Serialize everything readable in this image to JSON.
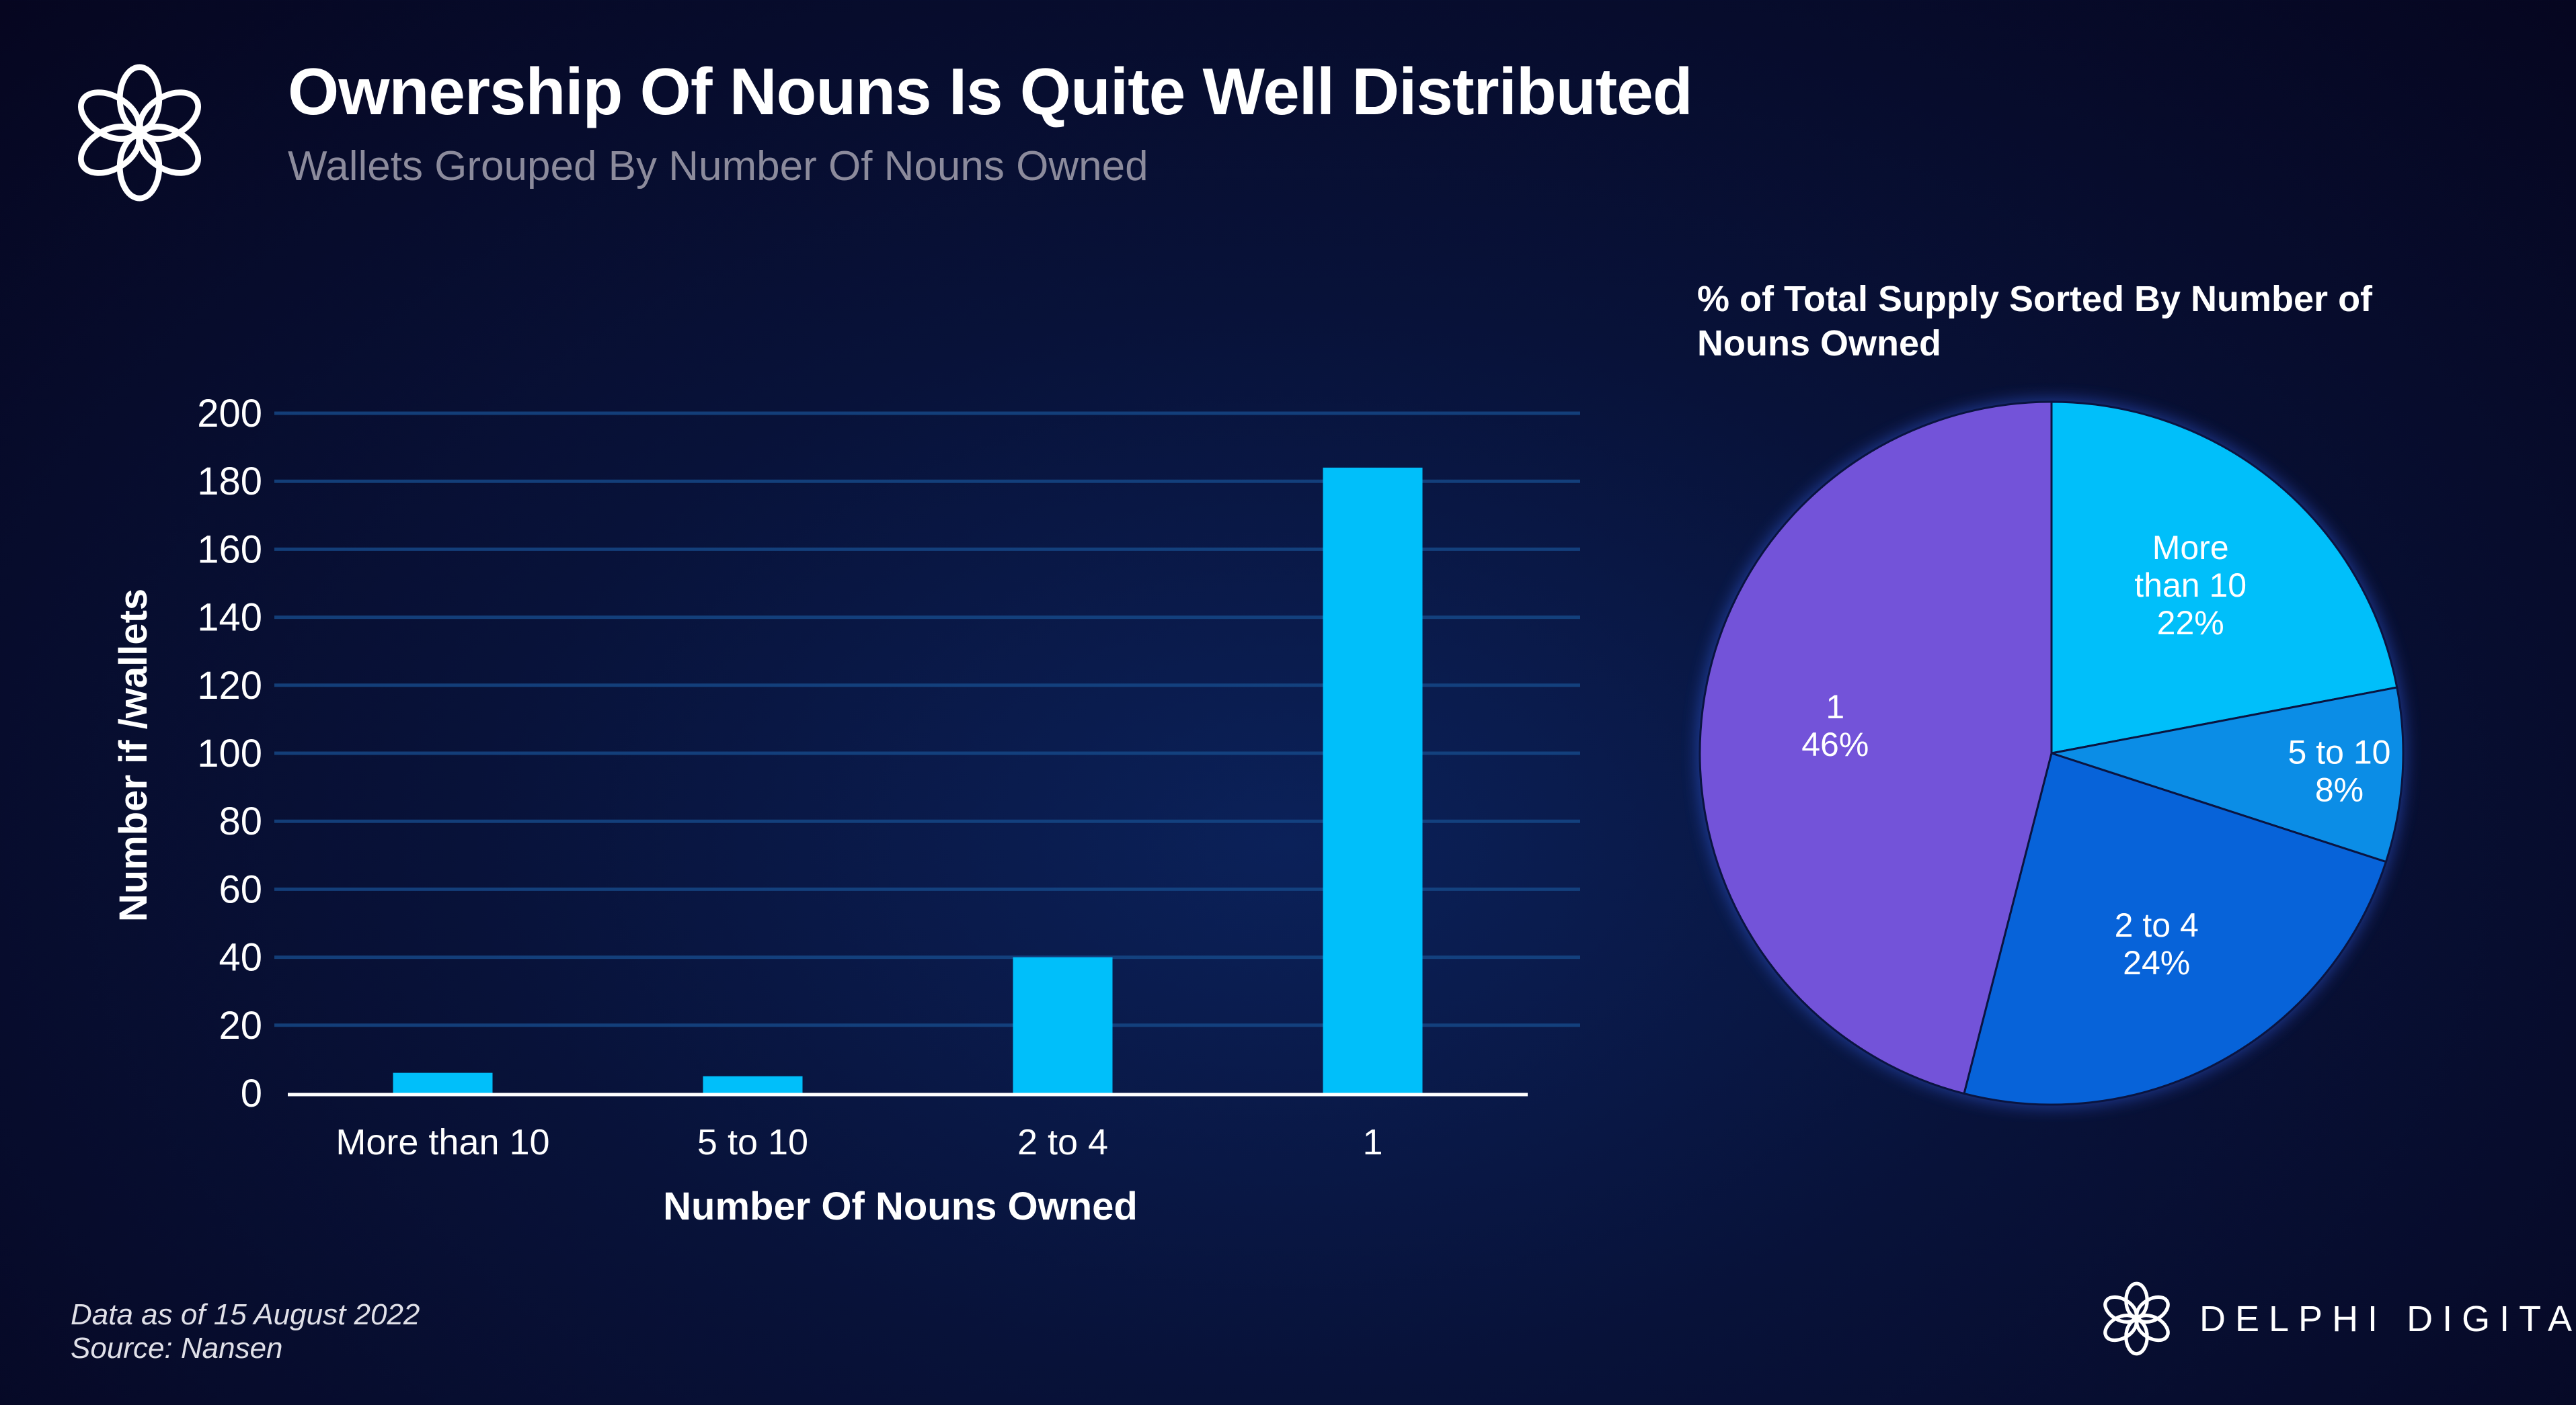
{
  "header": {
    "title": "Ownership Of Nouns Is Quite Well Distributed",
    "subtitle": "Wallets Grouped By Number Of Nouns Owned"
  },
  "footer": {
    "date_note": "Data as of 15 August 2022",
    "source": "Source: Nansen"
  },
  "brand": {
    "name": "DELPHI DIGITAL",
    "logo_icon": "delphi-knot-logo"
  },
  "colors": {
    "bar": "#00bffa",
    "grid": "#164a8a",
    "axis": "#ffffff"
  },
  "chart_data": [
    {
      "type": "bar",
      "title": "",
      "xlabel": "Number Of  Nouns Owned",
      "ylabel": "Number if /wallets",
      "categories": [
        "More than 10",
        "5 to 10",
        "2 to 4",
        "1"
      ],
      "values": [
        6,
        5,
        40,
        184
      ],
      "ylim": [
        0,
        200
      ],
      "yticks": [
        0,
        20,
        40,
        60,
        80,
        100,
        120,
        140,
        160,
        180,
        200
      ],
      "grid": true
    },
    {
      "type": "pie",
      "title": "% of Total Supply Sorted By Number of Nouns Owned",
      "categories": [
        "More than 10",
        "5 to 10",
        "2 to 4",
        "1"
      ],
      "values": [
        22,
        8,
        24,
        46
      ],
      "labels": [
        "22%",
        "8%",
        "24%",
        "46%"
      ],
      "colors": [
        "#00bffa",
        "#0b8de6",
        "#0763d9",
        "#7353d9"
      ],
      "start": "top",
      "direction": "clockwise"
    }
  ]
}
